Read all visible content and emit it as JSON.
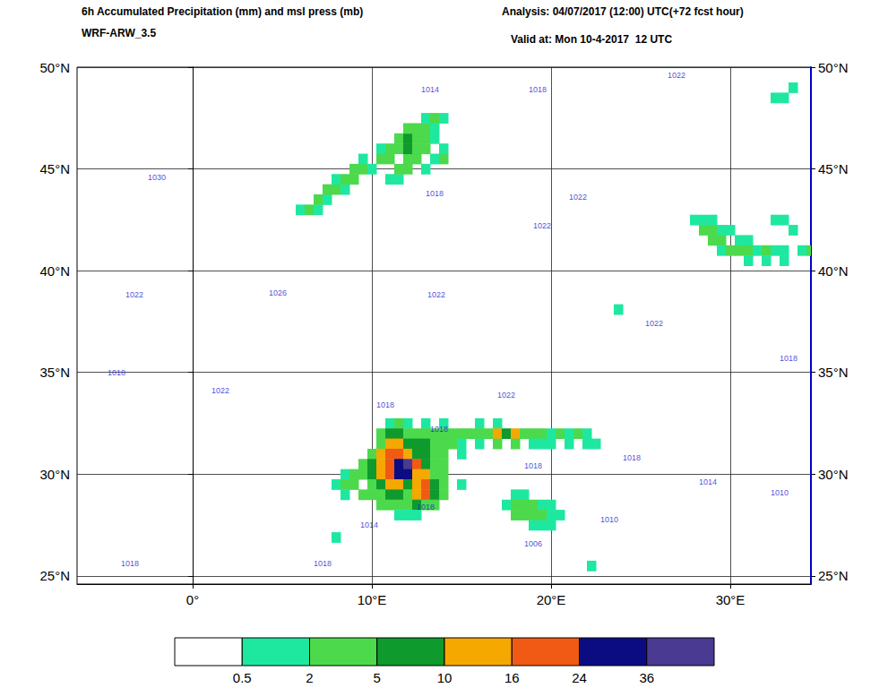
{
  "chart_data": {
    "type": "map",
    "title": "6h Accumulated Precipitation (mm) and msl press (mb)",
    "subtitle": "WRF-ARW_3.5",
    "annotations": [
      "Analysis: 04/07/2017 (12:00) UTC(+72 fcst hour)",
      "Valid at: Mon 10-4-2017  12 UTC"
    ],
    "xlim": [
      -6.45,
      34.5
    ],
    "xticks": [
      {
        "value": 0,
        "label": "0°"
      },
      {
        "value": 10,
        "label": "10°E"
      },
      {
        "value": 20,
        "label": "20°E"
      },
      {
        "value": 30,
        "label": "30°E"
      }
    ],
    "ylim": [
      24.6,
      50
    ],
    "yticks": [
      {
        "value": 25,
        "label": "25°N"
      },
      {
        "value": 30,
        "label": "30°N"
      },
      {
        "value": 35,
        "label": "35°N"
      },
      {
        "value": 40,
        "label": "40°N"
      },
      {
        "value": 45,
        "label": "45°N"
      },
      {
        "value": 50,
        "label": "50°N"
      }
    ],
    "grid": true,
    "precipitation": {
      "bounds": [
        0.5,
        2,
        5,
        10,
        16,
        24,
        36
      ],
      "colors": [
        "#ffffff",
        "#1ee8a0",
        "#4cd94c",
        "#0f9a2e",
        "#f5a800",
        "#f05a14",
        "#0c0c82",
        "#4b3a92"
      ],
      "cells": [
        [
          6.0,
          43,
          1
        ],
        [
          6.5,
          43,
          2.5
        ],
        [
          7.0,
          43,
          1
        ],
        [
          7.0,
          43.5,
          3
        ],
        [
          7.5,
          43.5,
          1
        ],
        [
          7.5,
          44,
          2
        ],
        [
          8.0,
          44,
          3
        ],
        [
          8.5,
          44,
          1
        ],
        [
          8.0,
          44.5,
          1
        ],
        [
          8.5,
          44.5,
          3
        ],
        [
          9.0,
          44.5,
          2
        ],
        [
          11.0,
          44.5,
          1
        ],
        [
          11.5,
          44.5,
          1
        ],
        [
          9.0,
          45,
          2
        ],
        [
          9.5,
          45,
          3
        ],
        [
          10.0,
          45,
          1.5
        ],
        [
          11.5,
          45,
          3
        ],
        [
          12.0,
          45,
          2
        ],
        [
          13.0,
          45,
          1.5
        ],
        [
          9.5,
          45.5,
          1
        ],
        [
          10.5,
          45.5,
          2
        ],
        [
          11.0,
          45.5,
          3
        ],
        [
          12.0,
          45.5,
          4
        ],
        [
          12.5,
          45.5,
          2
        ],
        [
          13.5,
          45.5,
          1
        ],
        [
          14.0,
          45.5,
          3
        ],
        [
          10.5,
          46,
          1
        ],
        [
          11.0,
          46,
          3
        ],
        [
          11.5,
          46,
          4
        ],
        [
          12.0,
          46,
          6
        ],
        [
          12.5,
          46,
          3
        ],
        [
          13.0,
          46,
          2
        ],
        [
          14.0,
          46,
          1
        ],
        [
          11.5,
          46.5,
          3
        ],
        [
          12.0,
          46.5,
          7
        ],
        [
          12.5,
          46.5,
          4
        ],
        [
          13.0,
          46.5,
          2
        ],
        [
          13.5,
          46.5,
          1
        ],
        [
          12.0,
          47,
          2
        ],
        [
          12.5,
          47,
          3
        ],
        [
          13.0,
          47,
          3
        ],
        [
          13.5,
          47,
          1.5
        ],
        [
          13.0,
          47.5,
          1
        ],
        [
          13.5,
          47.5,
          2
        ],
        [
          14.0,
          47.5,
          1
        ],
        [
          28.0,
          42.5,
          1
        ],
        [
          28.5,
          42.5,
          1.5
        ],
        [
          29.0,
          42.5,
          1
        ],
        [
          32.5,
          42.5,
          1
        ],
        [
          33.0,
          42.5,
          1
        ],
        [
          28.5,
          42,
          2
        ],
        [
          29.0,
          42,
          2.5
        ],
        [
          29.5,
          42,
          1.5
        ],
        [
          30.0,
          42,
          1
        ],
        [
          33.5,
          42,
          1
        ],
        [
          29.0,
          41.5,
          3
        ],
        [
          29.5,
          41.5,
          2
        ],
        [
          30.5,
          41.5,
          1
        ],
        [
          31.0,
          41.5,
          1
        ],
        [
          29.5,
          41,
          1
        ],
        [
          30.0,
          41,
          3
        ],
        [
          30.5,
          41,
          2
        ],
        [
          31.0,
          41,
          2
        ],
        [
          31.5,
          41,
          1.5
        ],
        [
          32.0,
          41,
          2
        ],
        [
          32.5,
          41,
          1.5
        ],
        [
          33.0,
          41,
          1.5
        ],
        [
          34.0,
          41,
          1.5
        ],
        [
          34.5,
          41,
          3
        ],
        [
          31.0,
          40.5,
          1
        ],
        [
          32.0,
          40.5,
          1
        ],
        [
          33.0,
          40.5,
          1
        ],
        [
          32.5,
          48.5,
          1
        ],
        [
          33.0,
          48.5,
          1.5
        ],
        [
          33.5,
          49,
          1
        ],
        [
          23.75,
          38.1,
          1
        ],
        [
          11.0,
          32.5,
          1
        ],
        [
          11.5,
          32.5,
          2
        ],
        [
          12.0,
          32.5,
          1.5
        ],
        [
          13.0,
          32.5,
          1
        ],
        [
          14.0,
          32.5,
          1
        ],
        [
          16.0,
          32.5,
          1
        ],
        [
          17.0,
          32.5,
          1
        ],
        [
          10.5,
          32,
          3
        ],
        [
          11.0,
          32,
          6
        ],
        [
          11.5,
          32,
          8
        ],
        [
          12.0,
          32,
          4
        ],
        [
          12.5,
          32,
          2
        ],
        [
          13.0,
          32,
          3
        ],
        [
          13.5,
          32,
          2
        ],
        [
          14.0,
          32,
          3
        ],
        [
          14.5,
          32,
          2
        ],
        [
          15.0,
          32,
          3
        ],
        [
          15.5,
          32,
          2
        ],
        [
          16.0,
          32,
          3
        ],
        [
          16.5,
          32,
          4
        ],
        [
          17.0,
          32,
          12
        ],
        [
          17.5,
          32,
          8
        ],
        [
          18.0,
          32,
          11
        ],
        [
          18.5,
          32,
          4
        ],
        [
          19.0,
          32,
          2
        ],
        [
          19.5,
          32,
          3
        ],
        [
          20.0,
          32,
          1.5
        ],
        [
          20.5,
          32,
          2
        ],
        [
          21.0,
          32,
          1
        ],
        [
          21.5,
          32,
          2
        ],
        [
          22.0,
          32,
          1
        ],
        [
          10.5,
          31.5,
          4
        ],
        [
          11.0,
          31.5,
          12
        ],
        [
          11.5,
          31.5,
          14
        ],
        [
          12.0,
          31.5,
          8
        ],
        [
          12.5,
          31.5,
          5
        ],
        [
          13.0,
          31.5,
          6
        ],
        [
          13.5,
          31.5,
          3
        ],
        [
          14.0,
          31.5,
          4
        ],
        [
          14.5,
          31.5,
          2
        ],
        [
          15.0,
          31.5,
          1
        ],
        [
          16.0,
          31.5,
          1.5
        ],
        [
          17.0,
          31.5,
          2
        ],
        [
          18.0,
          31.5,
          2
        ],
        [
          19.0,
          31.5,
          1
        ],
        [
          19.5,
          31.5,
          1.5
        ],
        [
          20.0,
          31.5,
          1.5
        ],
        [
          21.0,
          31.5,
          1
        ],
        [
          22.0,
          31.5,
          1.5
        ],
        [
          22.5,
          31.5,
          1
        ],
        [
          10.0,
          31,
          3
        ],
        [
          10.5,
          31,
          12
        ],
        [
          11.0,
          31,
          18
        ],
        [
          11.5,
          31,
          20
        ],
        [
          12.0,
          31,
          14
        ],
        [
          12.5,
          31,
          8
        ],
        [
          13.0,
          31,
          6
        ],
        [
          13.5,
          31,
          3
        ],
        [
          14.0,
          31,
          2
        ],
        [
          15.0,
          31,
          1
        ],
        [
          9.5,
          30.5,
          2
        ],
        [
          10.0,
          30.5,
          6
        ],
        [
          10.5,
          30.5,
          14
        ],
        [
          11.0,
          30.5,
          20
        ],
        [
          11.5,
          30.5,
          26
        ],
        [
          12.0,
          30.5,
          40
        ],
        [
          12.5,
          30.5,
          18
        ],
        [
          13.0,
          30.5,
          8
        ],
        [
          13.5,
          30.5,
          4
        ],
        [
          14.0,
          30.5,
          2
        ],
        [
          8.5,
          30,
          1
        ],
        [
          9.0,
          30,
          2
        ],
        [
          9.5,
          30,
          3
        ],
        [
          10.0,
          30,
          6
        ],
        [
          10.5,
          30,
          13
        ],
        [
          11.0,
          30,
          18
        ],
        [
          11.5,
          30,
          30
        ],
        [
          12.0,
          30,
          28
        ],
        [
          12.5,
          30,
          14
        ],
        [
          13.0,
          30,
          10
        ],
        [
          13.5,
          30,
          4
        ],
        [
          14.0,
          30,
          2
        ],
        [
          8.0,
          29.5,
          1
        ],
        [
          8.5,
          29.5,
          2
        ],
        [
          9.0,
          29.5,
          2.5
        ],
        [
          10.0,
          29.5,
          4
        ],
        [
          10.5,
          29.5,
          6
        ],
        [
          11.0,
          29.5,
          14
        ],
        [
          11.5,
          29.5,
          12
        ],
        [
          12.0,
          29.5,
          8
        ],
        [
          12.5,
          29.5,
          14
        ],
        [
          13.0,
          29.5,
          18
        ],
        [
          13.5,
          29.5,
          6
        ],
        [
          14.0,
          29.5,
          2
        ],
        [
          15.0,
          29.5,
          1
        ],
        [
          8.5,
          29,
          1
        ],
        [
          9.5,
          29,
          2
        ],
        [
          10.0,
          29,
          3
        ],
        [
          10.5,
          29,
          4
        ],
        [
          11.0,
          29,
          8
        ],
        [
          11.5,
          29,
          6
        ],
        [
          12.0,
          29,
          4
        ],
        [
          12.5,
          29,
          12
        ],
        [
          13.0,
          29,
          20
        ],
        [
          13.5,
          29,
          8
        ],
        [
          14.0,
          29,
          2
        ],
        [
          10.5,
          28.5,
          2
        ],
        [
          11.0,
          28.5,
          3
        ],
        [
          11.5,
          28.5,
          2
        ],
        [
          12.0,
          28.5,
          3
        ],
        [
          12.5,
          28.5,
          6
        ],
        [
          13.0,
          28.5,
          4
        ],
        [
          13.5,
          28.5,
          2
        ],
        [
          11.5,
          28,
          1
        ],
        [
          12.0,
          28,
          1.5
        ],
        [
          12.5,
          28,
          1
        ],
        [
          18.0,
          29,
          1
        ],
        [
          18.5,
          29,
          1
        ],
        [
          17.5,
          28.5,
          1
        ],
        [
          18.0,
          28.5,
          2
        ],
        [
          18.5,
          28.5,
          3
        ],
        [
          19.0,
          28.5,
          2
        ],
        [
          19.5,
          28.5,
          1
        ],
        [
          20.0,
          28.5,
          1
        ],
        [
          18.0,
          28,
          2
        ],
        [
          18.5,
          28,
          3
        ],
        [
          19.0,
          28,
          2.5
        ],
        [
          19.5,
          28,
          2
        ],
        [
          20.0,
          28,
          1.5
        ],
        [
          20.5,
          28,
          1
        ],
        [
          19.0,
          27.5,
          1
        ],
        [
          19.5,
          27.5,
          1.5
        ],
        [
          20.0,
          27.5,
          1
        ],
        [
          8.0,
          26.9,
          1
        ],
        [
          22.25,
          25.5,
          1
        ]
      ]
    },
    "isobar_labels": [
      [
        -2,
        44.6,
        1030
      ],
      [
        4.75,
        38.9,
        1026
      ],
      [
        -3.25,
        38.8,
        1022
      ],
      [
        1.55,
        34.1,
        1022
      ],
      [
        -4.25,
        35,
        1018
      ],
      [
        17.5,
        33.9,
        1022
      ],
      [
        13.6,
        38.8,
        1022
      ],
      [
        19.5,
        42.2,
        1022
      ],
      [
        21.5,
        43.6,
        1022
      ],
      [
        13.5,
        43.8,
        1018
      ],
      [
        13.25,
        48.9,
        1014
      ],
      [
        19.25,
        48.9,
        1018
      ],
      [
        27,
        49.6,
        1022
      ],
      [
        25.75,
        37.4,
        1022
      ],
      [
        13.75,
        32.2,
        1018
      ],
      [
        19,
        30.4,
        1018
      ],
      [
        24.5,
        30.8,
        1018
      ],
      [
        28.75,
        29.6,
        1014
      ],
      [
        23.25,
        27.75,
        1010
      ],
      [
        19,
        26.6,
        1006
      ],
      [
        7.25,
        25.6,
        1018
      ],
      [
        9.85,
        27.5,
        1014
      ],
      [
        -3.5,
        25.6,
        1018
      ],
      [
        13,
        28.4,
        1018
      ],
      [
        32.75,
        29.1,
        1010
      ],
      [
        10.75,
        33.4,
        1018
      ],
      [
        33.25,
        35.7,
        1018
      ]
    ]
  }
}
